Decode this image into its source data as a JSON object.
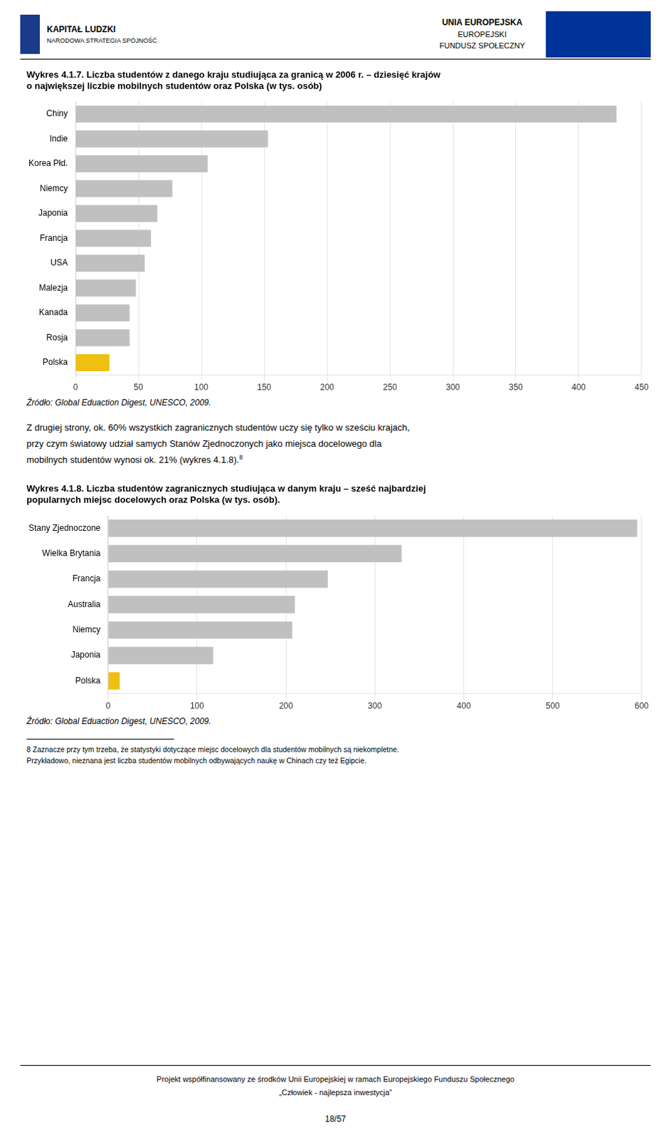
{
  "chart_data": [
    {
      "type": "bar",
      "orientation": "horizontal",
      "title": [
        "Wykres 4.1.7. Liczba studentów z danego kraju studiująca za granicą w 2006 r. – dziesięć krajów",
        "o największej liczbie mobilnych studentów oraz Polska (w tys. osób)"
      ],
      "categories": [
        "Chiny",
        "Indie",
        "Korea Płd.",
        "Niemcy",
        "Japonia",
        "Francja",
        "USA",
        "Malezja",
        "Kanada",
        "Rosja",
        "Polska"
      ],
      "values": [
        430,
        153,
        105,
        77,
        65,
        60,
        55,
        48,
        43,
        43,
        27
      ],
      "colors": [
        "#c0c0c0",
        "#c0c0c0",
        "#c0c0c0",
        "#c0c0c0",
        "#c0c0c0",
        "#c0c0c0",
        "#c0c0c0",
        "#c0c0c0",
        "#c0c0c0",
        "#c0c0c0",
        "#f0c010"
      ],
      "xlim": [
        0,
        450
      ],
      "xticks": [
        0,
        50,
        100,
        150,
        200,
        250,
        300,
        350,
        400,
        450
      ],
      "grid": true,
      "annotations": [
        "Źródło: Global Eduaction Digest, UNESCO, 2009."
      ]
    },
    {
      "type": "bar",
      "orientation": "horizontal",
      "title": [
        "Wykres 4.1.8. Liczba studentów zagranicznych studiująca w danym kraju – sześć najbardziej",
        "popularnych miejsc docelowych oraz Polska (w tys. osób)."
      ],
      "categories": [
        "Stany Zjednoczone",
        "Wielka Brytania",
        "Francja",
        "Australia",
        "Niemcy",
        "Japonia",
        "Polska"
      ],
      "values": [
        595,
        330,
        247,
        210,
        207,
        118,
        13
      ],
      "colors": [
        "#c0c0c0",
        "#c0c0c0",
        "#c0c0c0",
        "#c0c0c0",
        "#c0c0c0",
        "#c0c0c0",
        "#f0c010"
      ],
      "xlim": [
        0,
        600
      ],
      "xticks": [
        0,
        100,
        200,
        300,
        400,
        500,
        600
      ],
      "grid": true,
      "annotations": [
        "Źródło: Global Eduaction Digest, UNESCO, 2009."
      ]
    }
  ],
  "header": {
    "left": [
      "KAPITAŁ LUDZKI",
      "NARODOWA STRATEGIA SPÓJNOŚĆ"
    ],
    "right": [
      "UNIA EUROPEJSKA",
      "EUROPEJSKI",
      "FUNDUSZ SPOŁECZNY"
    ]
  },
  "text": [
    "Z drugiej strony, ok. 60% wszystkich zagranicznych studentów uczy się tylko w sześciu krajach,",
    "przy czym światowy udział samych Stanów Zjednoczonych jako miejsca docelowego dla",
    "mobilnych studentów wynosi ok. 21% (wykres 4.1.8)."
  ],
  "footnote_marker": "8",
  "footnotes": [
    "8 Zaznacze przy tym trzeba, że statystyki dotyczące miejsc docelowych dla studentów mobilnych są niekompletne.",
    "Przykładowo, nieznana jest liczba studentów mobilnych odbywających naukę w Chinach czy też Egipcie."
  ],
  "footer": [
    "Projekt współfinansowany ze środków Unii Europejskiej w ramach Europejskiego Funduszu Społecznego",
    "„Człowiek - najlepsza inwestycja”"
  ],
  "page_number": "18/57"
}
